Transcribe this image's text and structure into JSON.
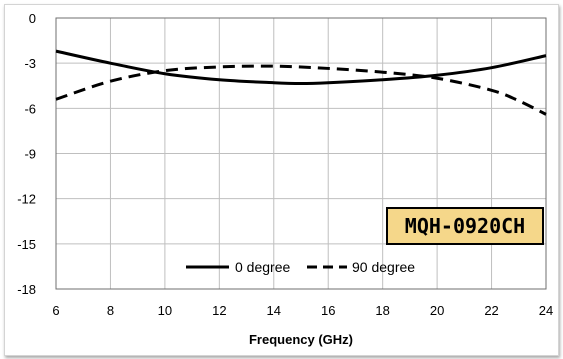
{
  "chart_data": {
    "type": "line",
    "title": "",
    "xlabel": "Frequency (GHz)",
    "ylabel": "",
    "xlim": [
      6,
      24
    ],
    "ylim": [
      -18,
      0
    ],
    "xticks": [
      6,
      8,
      10,
      12,
      14,
      16,
      18,
      20,
      22,
      24
    ],
    "yticks": [
      0,
      -3,
      -6,
      -9,
      -12,
      -15,
      -18
    ],
    "grid": true,
    "legend": "bottom-center",
    "series": [
      {
        "name": "0 degree",
        "style": "solid",
        "color": "#000000",
        "x": [
          6,
          8,
          10,
          12,
          14,
          15,
          16,
          18,
          20,
          22,
          24
        ],
        "y": [
          -2.2,
          -3.0,
          -3.7,
          -4.1,
          -4.3,
          -4.35,
          -4.3,
          -4.1,
          -3.8,
          -3.3,
          -2.5
        ]
      },
      {
        "name": "90 degree",
        "style": "dashed",
        "color": "#000000",
        "x": [
          6,
          8,
          10,
          12,
          14,
          16,
          18,
          20,
          22,
          23,
          24
        ],
        "y": [
          -5.4,
          -4.2,
          -3.5,
          -3.25,
          -3.2,
          -3.35,
          -3.6,
          -4.0,
          -4.8,
          -5.5,
          -6.4
        ]
      }
    ],
    "annotation": "MQH-0920CH"
  },
  "colors": {
    "badge_fill": "#f5d78a",
    "badge_border": "#000000",
    "grid": "#bfbfbf",
    "plot_border": "#6f6f6f"
  }
}
